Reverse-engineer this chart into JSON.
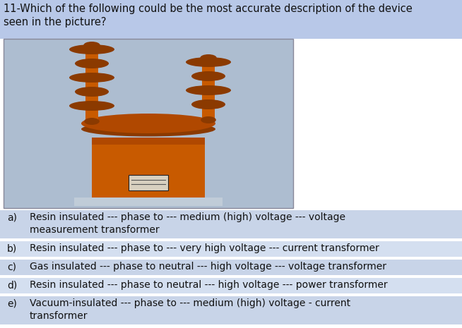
{
  "title_line1": "11-Which of the following could be the most accurate description of the device",
  "title_line2": "seen in the picture?",
  "options": [
    {
      "label": "a)",
      "text_line1": "Resin insulated --- phase to --- medium (high) voltage --- voltage",
      "text_line2": "measurement transformer",
      "two_lines": true,
      "highlighted": true
    },
    {
      "label": "b)",
      "text_line1": "Resin insulated --- phase to --- very high voltage --- current transformer",
      "text_line2": "",
      "two_lines": false,
      "highlighted": false
    },
    {
      "label": "c)",
      "text_line1": "Gas insulated --- phase to neutral --- high voltage --- voltage transformer",
      "text_line2": "",
      "two_lines": false,
      "highlighted": false
    },
    {
      "label": "d)",
      "text_line1": "Resin insulated --- phase to neutral --- high voltage --- power transformer",
      "text_line2": "",
      "two_lines": false,
      "highlighted": false
    },
    {
      "label": "e)",
      "text_line1": "Vacuum-insulated --- phase to --- medium (high) voltage - current",
      "text_line2": "transformer",
      "two_lines": true,
      "highlighted": false
    }
  ],
  "highlight_color_title": "#b8c8e8",
  "highlight_color_option": "#c8d4e8",
  "highlight_color_alt": "#d4dff0",
  "background_color": "#ffffff",
  "text_color": "#111111",
  "title_fontsize": 10.5,
  "option_fontsize": 10.0,
  "fig_width": 6.54,
  "fig_height": 4.65,
  "img_bg_color": "#adbdd0",
  "transformer_orange": "#c85a00",
  "transformer_dark": "#8b3a00",
  "transformer_mid": "#b04800",
  "base_color": "#c0ccd8"
}
